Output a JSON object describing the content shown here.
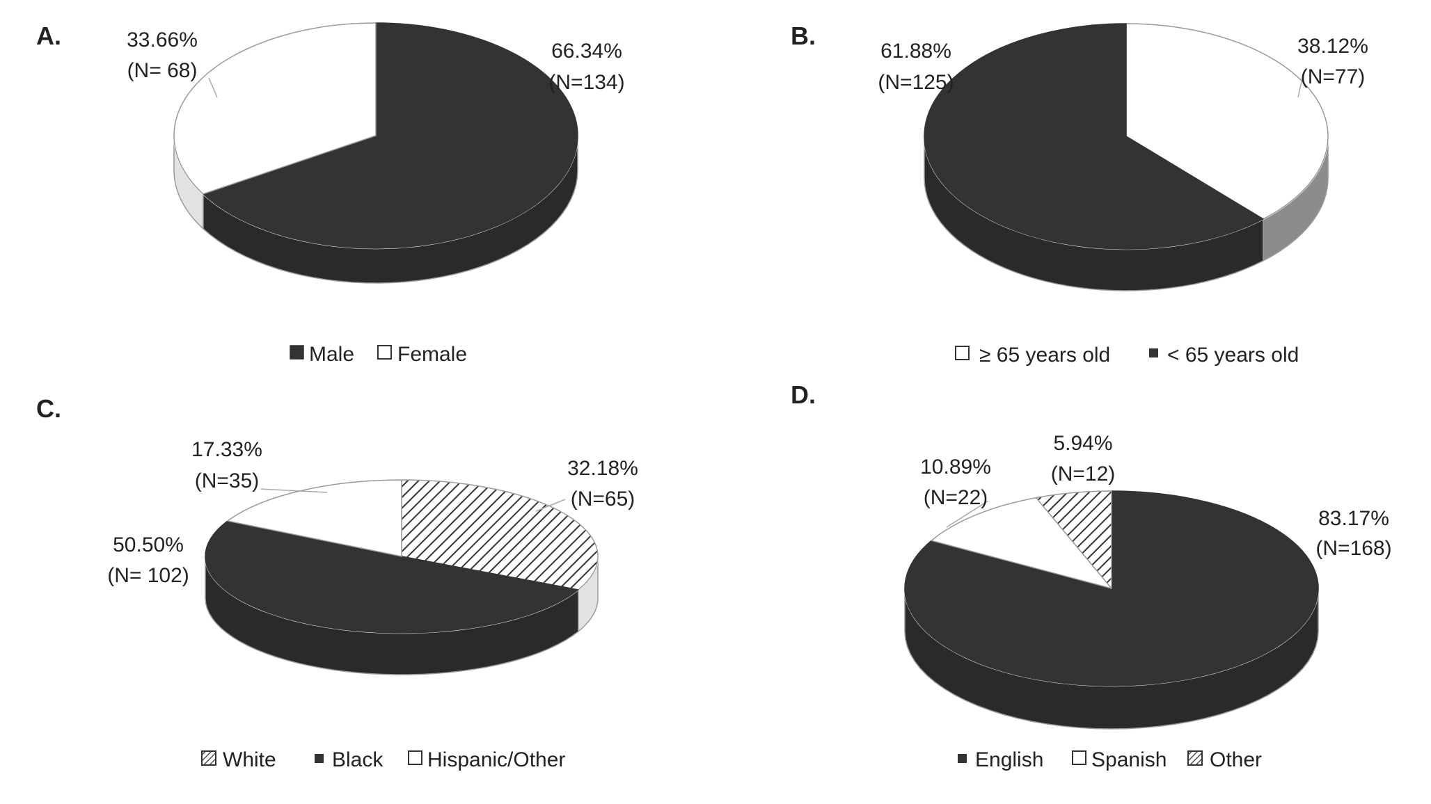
{
  "chart_data": [
    {
      "type": "pie",
      "panel": "A.",
      "categories": [
        "Male",
        "Female"
      ],
      "values": [
        66.34,
        33.66
      ],
      "counts": [
        134,
        68
      ],
      "labels": [
        {
          "pct": "66.34%",
          "n": "(N=134)"
        },
        {
          "pct": "33.66%",
          "n": "(N= 68)"
        }
      ],
      "legend": [
        "Male",
        "Female"
      ],
      "legend_placement": "bottom",
      "three_d": true
    },
    {
      "type": "pie",
      "panel": "B.",
      "categories": [
        "≥ 65 years old",
        "< 65 years old"
      ],
      "values": [
        38.12,
        61.88
      ],
      "counts": [
        77,
        125
      ],
      "labels": [
        {
          "pct": "38.12%",
          "n": "(N=77)"
        },
        {
          "pct": "61.88%",
          "n": "(N=125)"
        }
      ],
      "legend": [
        "≥ 65 years old",
        "< 65 years old"
      ],
      "legend_placement": "bottom",
      "three_d": true
    },
    {
      "type": "pie",
      "panel": "C.",
      "categories": [
        "White",
        "Black",
        "Hispanic/Other"
      ],
      "values": [
        32.18,
        50.5,
        17.33
      ],
      "counts": [
        65,
        102,
        35
      ],
      "labels": [
        {
          "pct": "32.18%",
          "n": "(N=65)"
        },
        {
          "pct": "50.50%",
          "n": "(N= 102)"
        },
        {
          "pct": "17.33%",
          "n": "(N=35)"
        }
      ],
      "legend": [
        "White",
        "Black",
        "Hispanic/Other"
      ],
      "legend_placement": "bottom",
      "three_d": true
    },
    {
      "type": "pie",
      "panel": "D.",
      "categories": [
        "English",
        "Spanish",
        "Other"
      ],
      "values": [
        83.17,
        10.89,
        5.94
      ],
      "counts": [
        168,
        22,
        12
      ],
      "labels": [
        {
          "pct": "83.17%",
          "n": "(N=168)"
        },
        {
          "pct": "10.89%",
          "n": "(N=22)"
        },
        {
          "pct": "5.94%",
          "n": "(N=12)"
        }
      ],
      "legend": [
        "English",
        "Spanish",
        "Other"
      ],
      "legend_placement": "bottom",
      "three_d": true
    }
  ],
  "colors": {
    "dark": "#333333",
    "dark_side": "#2a2a2a",
    "light": "#ffffff",
    "light_side": "#e2e2e2",
    "gray": "#8c8c8c",
    "gray_side": "#777777",
    "outline": "#9a9a9a",
    "text": "#222222"
  }
}
